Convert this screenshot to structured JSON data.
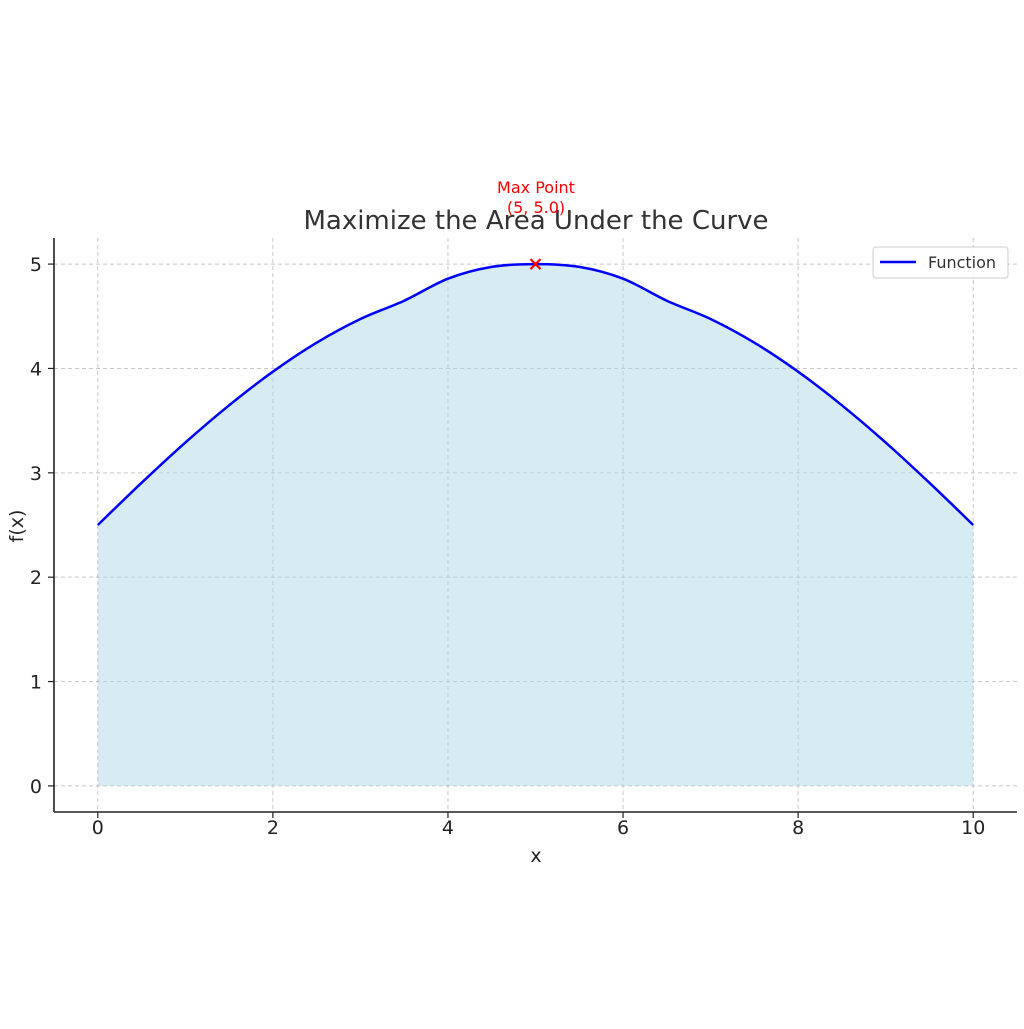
{
  "chart_data": {
    "type": "area",
    "title": "Maximize the Area Under the Curve",
    "xlabel": "x",
    "ylabel": "f(x)",
    "xlim": [
      -0.5,
      10.5
    ],
    "ylim": [
      -0.25,
      5.25
    ],
    "xticks": [
      0,
      2,
      4,
      6,
      8,
      10
    ],
    "yticks": [
      0,
      1,
      2,
      3,
      4,
      5
    ],
    "grid": true,
    "legend_placement": "top-right",
    "series": [
      {
        "name": "Function",
        "color": "#0000ff",
        "fill_color": "#add8e6",
        "x": [
          0,
          0.5,
          1,
          1.5,
          2,
          2.5,
          3,
          3.5,
          4,
          4.5,
          5,
          5.5,
          6,
          6.5,
          7,
          7.5,
          8,
          8.5,
          9,
          9.5,
          10
        ],
        "y": [
          2.5,
          2.904,
          3.29,
          3.647,
          3.969,
          4.247,
          4.474,
          4.649,
          4.86,
          4.973,
          5.0,
          4.973,
          4.86,
          4.649,
          4.474,
          4.247,
          3.969,
          3.647,
          3.29,
          2.904,
          2.5
        ]
      }
    ],
    "annotations": [
      {
        "label_line1": "Max Point",
        "label_line2": "(5, 5.0)",
        "x": 5,
        "y": 5.0,
        "marker": "x",
        "color": "#ff0000"
      }
    ]
  }
}
